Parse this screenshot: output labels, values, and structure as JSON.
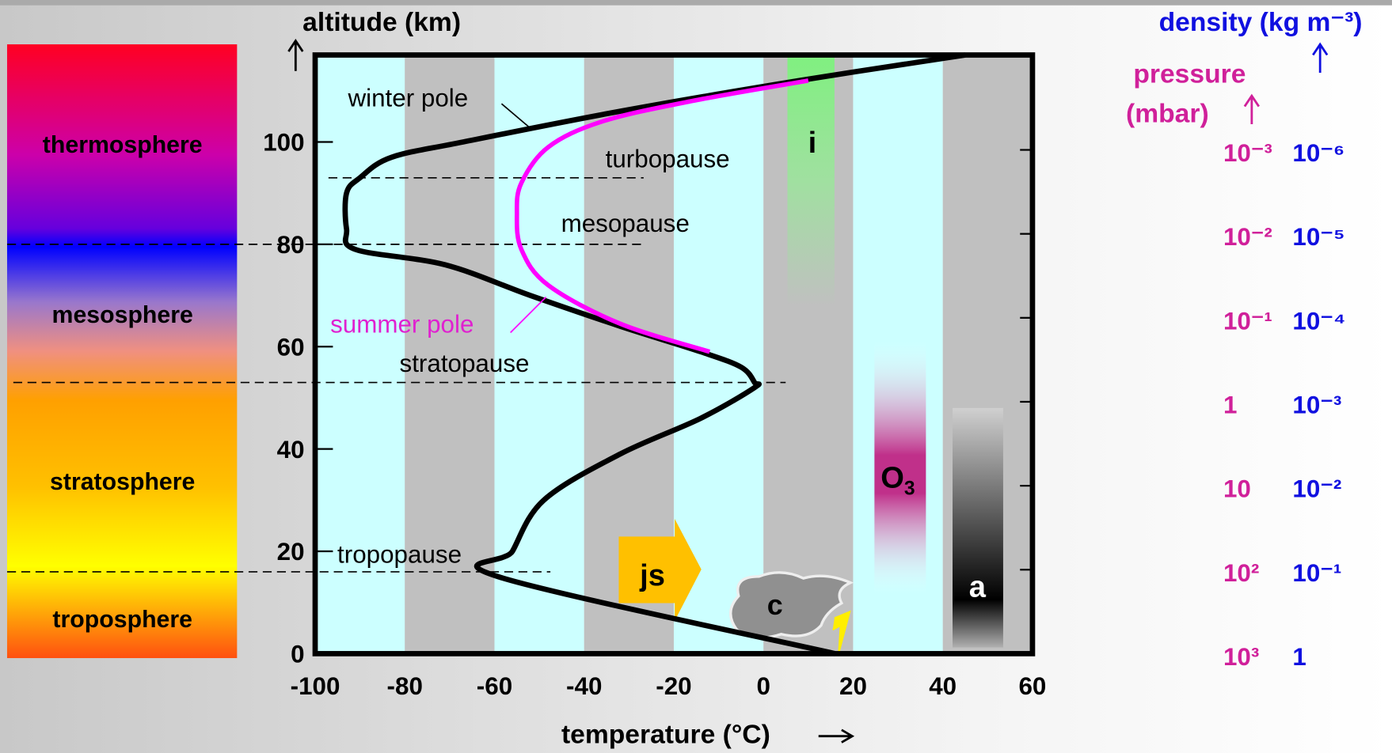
{
  "chart_data": {
    "type": "line",
    "x_label": "temperature (°C)",
    "y_label": "altitude (km)",
    "xlim": [
      -100,
      60
    ],
    "xticks": [
      -100,
      -80,
      -60,
      -40,
      -20,
      0,
      20,
      40,
      60
    ],
    "ylim": [
      0,
      117
    ],
    "yticks": [
      0,
      20,
      40,
      60,
      80,
      100
    ],
    "series": [
      {
        "name": "winter pole",
        "color": "#000000",
        "x": [
          16,
          -59,
          -56,
          -49,
          -32,
          -14,
          -2,
          -2,
          -5,
          -14,
          -32,
          -52,
          -71,
          -91,
          -93,
          -93,
          -90,
          -83,
          -67,
          -32,
          8,
          45
        ],
        "values": [
          0,
          15,
          20,
          30,
          39,
          46,
          52,
          53,
          56,
          59,
          64,
          70,
          76,
          79,
          83,
          90,
          93,
          97,
          100,
          106,
          112,
          117
        ]
      },
      {
        "name": "summer pole",
        "color": "#ff00ff",
        "x": [
          -12,
          -32,
          -48,
          -54,
          -55,
          -54,
          -48,
          -36,
          -16,
          10
        ],
        "values": [
          59,
          64.5,
          72,
          79,
          86,
          92,
          99,
          104,
          108,
          112
        ]
      }
    ],
    "boundaries": [
      {
        "label": "tropopause",
        "altitude": 16
      },
      {
        "label": "stratopause",
        "altitude": 53
      },
      {
        "label": "mesopause",
        "altitude": 80
      },
      {
        "label": "turbopause",
        "altitude": 93
      }
    ],
    "layers": [
      "thermosphere",
      "mesosphere",
      "stratosphere",
      "troposphere"
    ],
    "markers": {
      "ice": "i",
      "ozone": "O",
      "ozone_sub": "3",
      "aerosol": "a",
      "jet_stream": "js",
      "cloud": "c"
    },
    "pressure_title": [
      "pressure",
      "(mbar)"
    ],
    "density_title": "density (kg m⁻³)",
    "pressure_labels": [
      "10⁻³",
      "10⁻²",
      "10⁻¹",
      "1",
      "10",
      "10²",
      "10³"
    ],
    "density_labels": [
      "10⁻⁶",
      "10⁻⁵",
      "10⁻⁴",
      "10⁻³",
      "10⁻²",
      "10⁻¹",
      "1"
    ]
  }
}
